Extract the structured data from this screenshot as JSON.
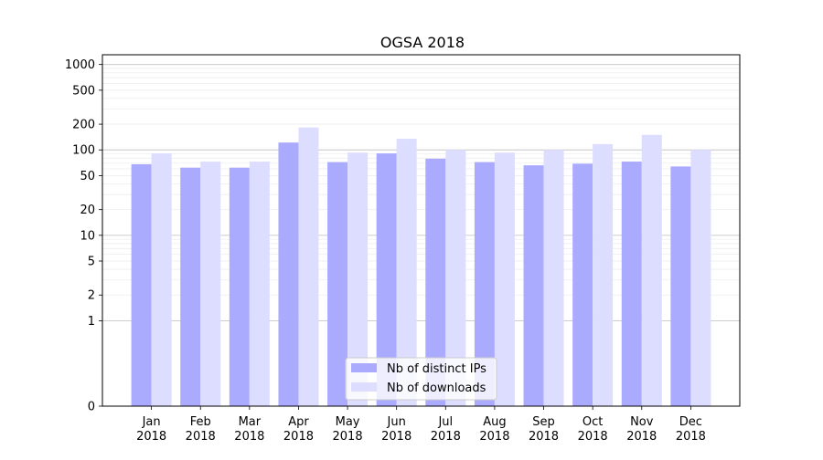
{
  "chart_data": {
    "type": "bar",
    "title": "OGSA 2018",
    "xlabel": "",
    "ylabel": "",
    "y_scale": "symlog",
    "ylim": [
      0,
      1300
    ],
    "y_ticks": [
      0,
      1,
      2,
      5,
      10,
      20,
      50,
      100,
      200,
      500,
      1000
    ],
    "y_tick_labels": [
      "0",
      "1",
      "2",
      "5",
      "10",
      "20",
      "50",
      "100",
      "200",
      "500",
      "1000"
    ],
    "grid": true,
    "legend_position": "bottom-center",
    "categories": [
      {
        "month": "Jan",
        "year": "2018"
      },
      {
        "month": "Feb",
        "year": "2018"
      },
      {
        "month": "Mar",
        "year": "2018"
      },
      {
        "month": "Apr",
        "year": "2018"
      },
      {
        "month": "May",
        "year": "2018"
      },
      {
        "month": "Jun",
        "year": "2018"
      },
      {
        "month": "Jul",
        "year": "2018"
      },
      {
        "month": "Aug",
        "year": "2018"
      },
      {
        "month": "Sep",
        "year": "2018"
      },
      {
        "month": "Oct",
        "year": "2018"
      },
      {
        "month": "Nov",
        "year": "2018"
      },
      {
        "month": "Dec",
        "year": "2018"
      }
    ],
    "series": [
      {
        "name": "Nb of distinct IPs",
        "color": "#aaaaff",
        "values": [
          68,
          62,
          62,
          122,
          72,
          91,
          79,
          72,
          66,
          69,
          73,
          64
        ]
      },
      {
        "name": "Nb of downloads",
        "color": "#ddddff",
        "values": [
          91,
          73,
          73,
          183,
          93,
          135,
          100,
          93,
          100,
          117,
          150,
          100
        ]
      }
    ]
  }
}
